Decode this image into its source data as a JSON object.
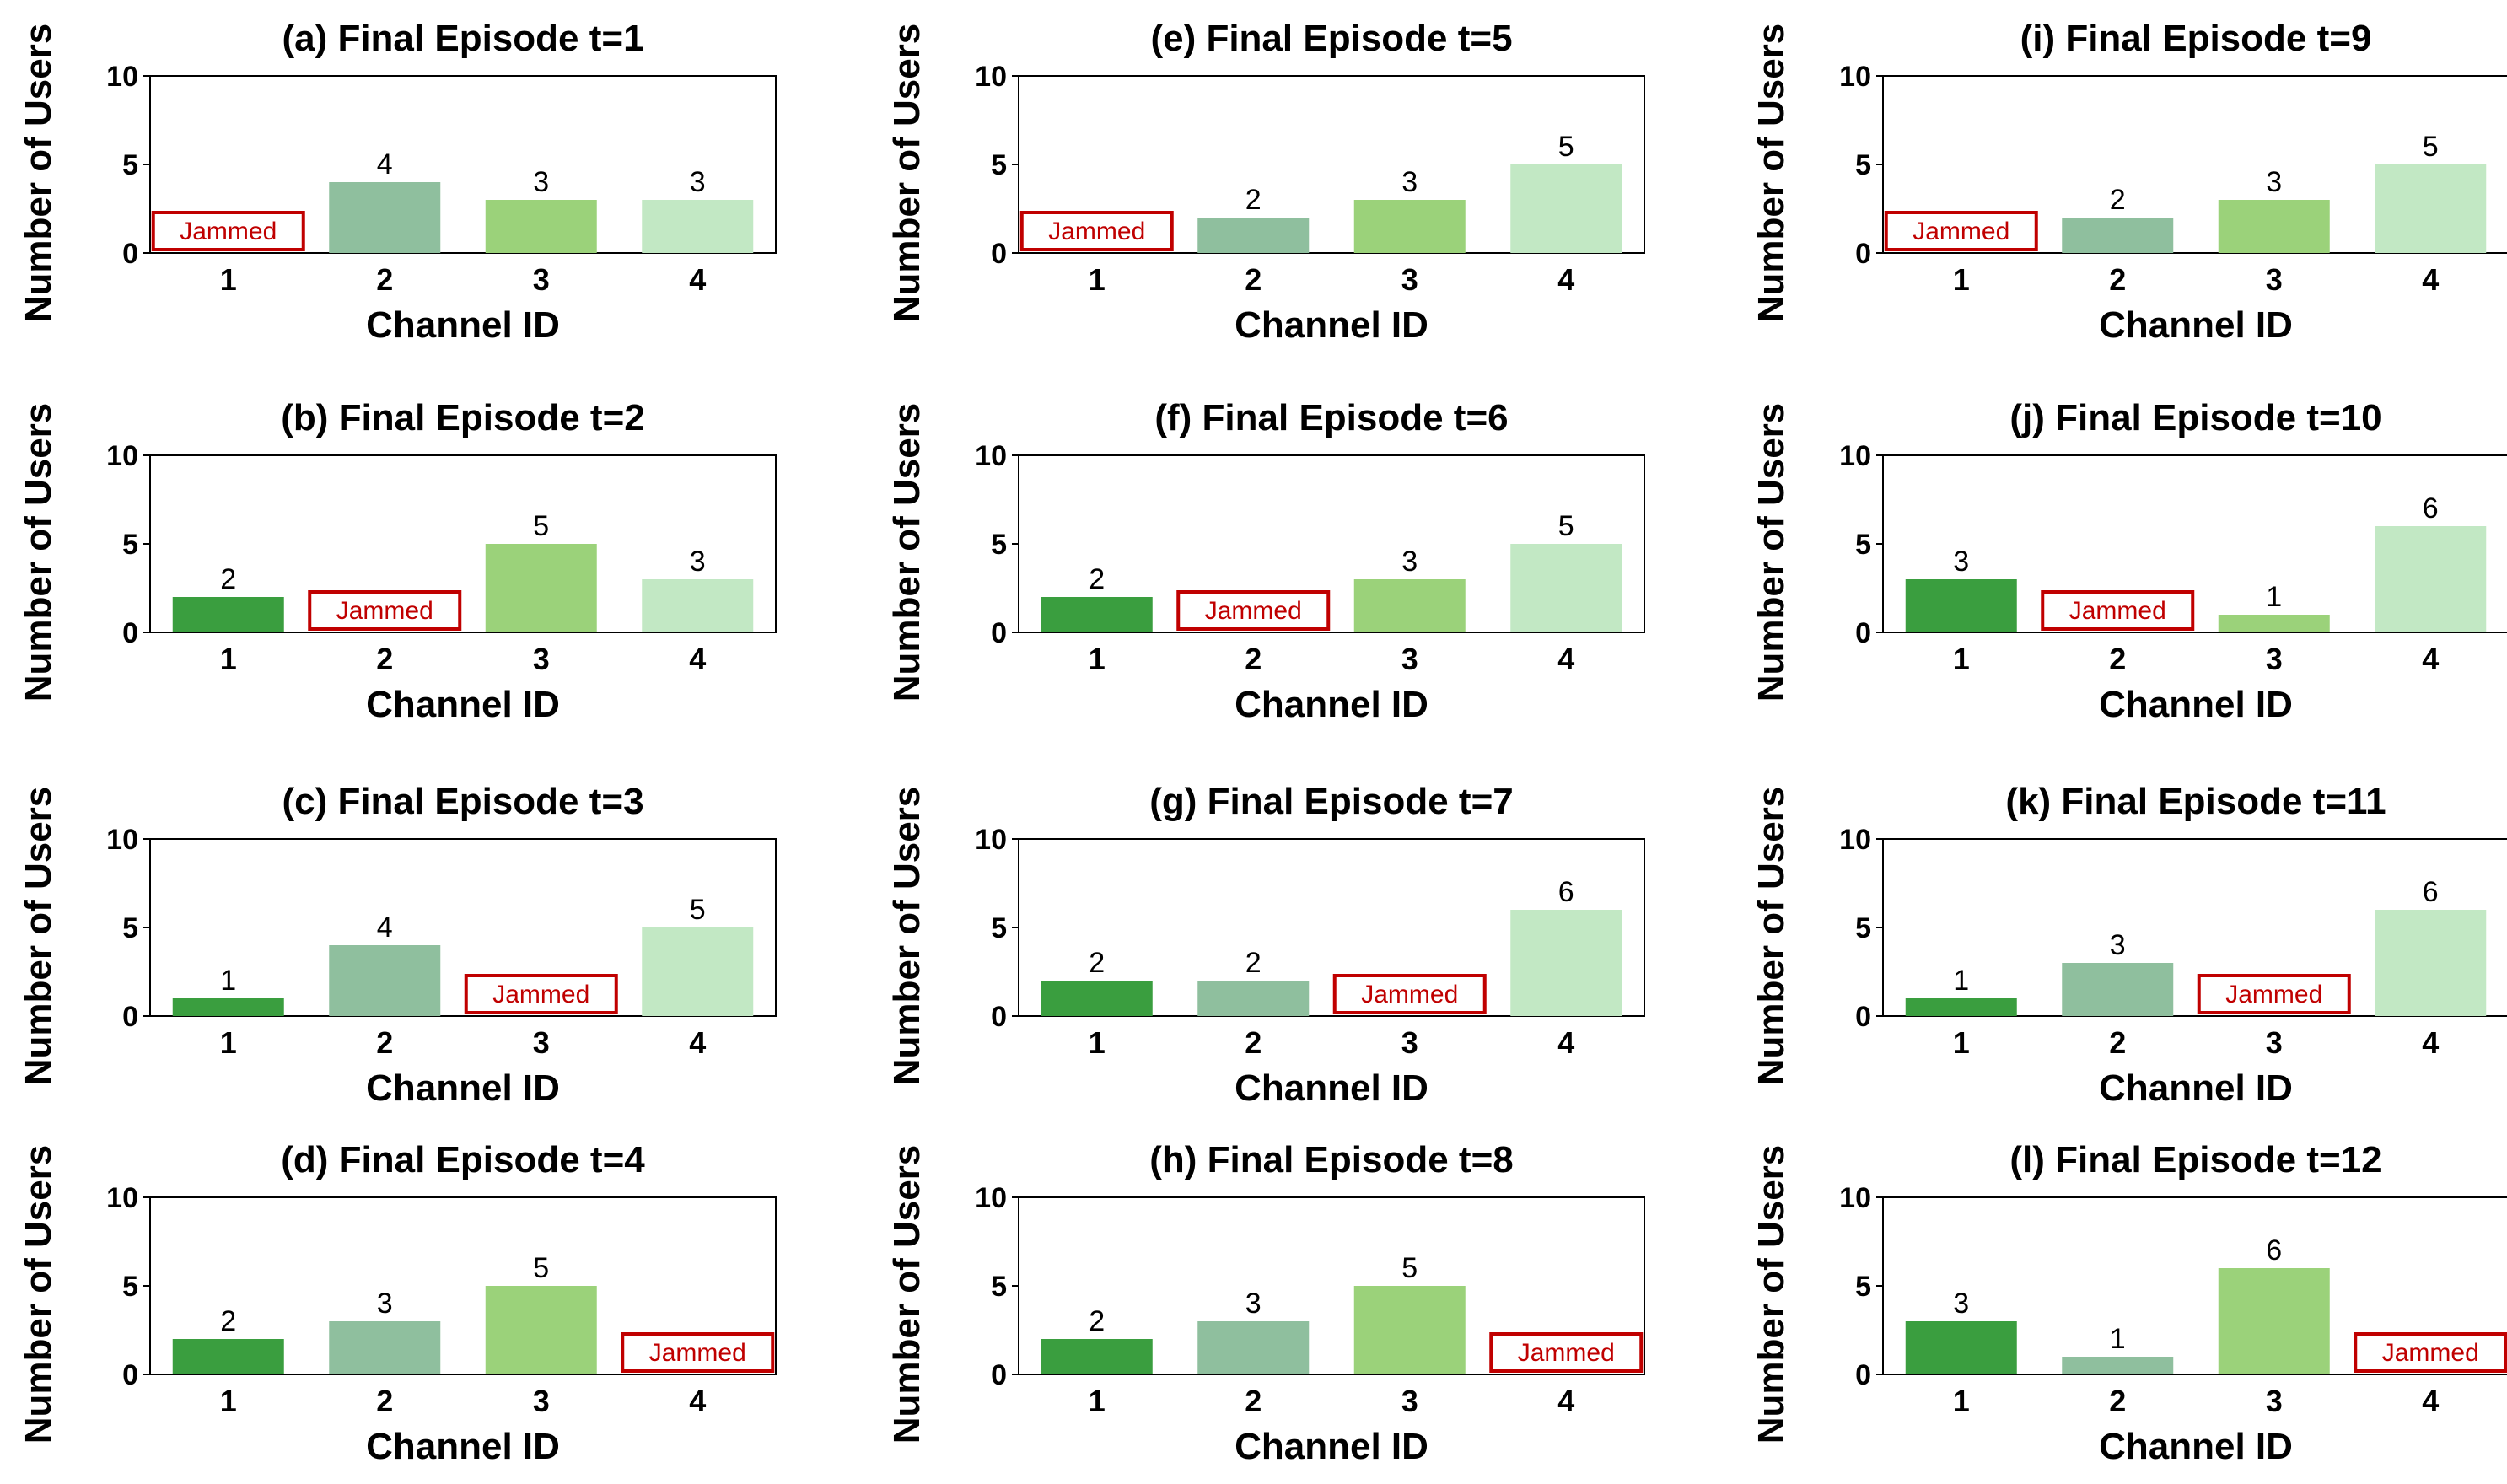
{
  "colors": {
    "jammed": "#c00000",
    "axis": "#000000",
    "channel_colors": [
      "#3a9e3f",
      "#8fbf9e",
      "#9bd27a",
      "#c2e8c4"
    ]
  },
  "chart_data": [
    {
      "type": "bar",
      "title": "(a) Final Episode t=1",
      "xlabel": "Channel ID",
      "ylabel": "Number of Users",
      "categories": [
        "1",
        "2",
        "3",
        "4"
      ],
      "values": [
        null,
        4,
        3,
        3
      ],
      "jammed_label": "Jammed",
      "jammed": "1",
      "yticks": [
        "0",
        "5",
        "10"
      ],
      "ylim": [
        0,
        10
      ]
    },
    {
      "type": "bar",
      "title": "(b) Final Episode t=2",
      "xlabel": "Channel ID",
      "ylabel": "Number of Users",
      "categories": [
        "1",
        "2",
        "3",
        "4"
      ],
      "values": [
        2,
        null,
        5,
        3
      ],
      "jammed_label": "Jammed",
      "jammed": "2",
      "yticks": [
        "0",
        "5",
        "10"
      ],
      "ylim": [
        0,
        10
      ]
    },
    {
      "type": "bar",
      "title": "(c) Final Episode t=3",
      "xlabel": "Channel ID",
      "ylabel": "Number of Users",
      "categories": [
        "1",
        "2",
        "3",
        "4"
      ],
      "values": [
        1,
        4,
        null,
        5
      ],
      "jammed_label": "Jammed",
      "jammed": "3",
      "yticks": [
        "0",
        "5",
        "10"
      ],
      "ylim": [
        0,
        10
      ]
    },
    {
      "type": "bar",
      "title": "(d) Final  Episode t=4",
      "xlabel": "Channel ID",
      "ylabel": "Number of Users",
      "categories": [
        "1",
        "2",
        "3",
        "4"
      ],
      "values": [
        2,
        3,
        5,
        null
      ],
      "jammed_label": "Jammed",
      "jammed": "4",
      "yticks": [
        "0",
        "5",
        "10"
      ],
      "ylim": [
        0,
        10
      ]
    },
    {
      "type": "bar",
      "title": "(e) Final Episode t=5",
      "xlabel": "Channel ID",
      "ylabel": "Number of Users",
      "categories": [
        "1",
        "2",
        "3",
        "4"
      ],
      "values": [
        null,
        2,
        3,
        5
      ],
      "jammed_label": "Jammed",
      "jammed": "1",
      "yticks": [
        "0",
        "5",
        "10"
      ],
      "ylim": [
        0,
        10
      ]
    },
    {
      "type": "bar",
      "title": "(f) Final Episode t=6",
      "xlabel": "Channel ID",
      "ylabel": "Number of Users",
      "categories": [
        "1",
        "2",
        "3",
        "4"
      ],
      "values": [
        2,
        null,
        3,
        5
      ],
      "jammed_label": "Jammed",
      "jammed": "2",
      "yticks": [
        "0",
        "5",
        "10"
      ],
      "ylim": [
        0,
        10
      ]
    },
    {
      "type": "bar",
      "title": "(g) Final Episode t=7",
      "xlabel": "Channel ID",
      "ylabel": "Number of Users",
      "categories": [
        "1",
        "2",
        "3",
        "4"
      ],
      "values": [
        2,
        2,
        null,
        6
      ],
      "jammed_label": "Jammed",
      "jammed": "3",
      "yticks": [
        "0",
        "5",
        "10"
      ],
      "ylim": [
        0,
        10
      ]
    },
    {
      "type": "bar",
      "title": "(h) Final Episode t=8",
      "xlabel": "Channel ID",
      "ylabel": "Number of Users",
      "categories": [
        "1",
        "2",
        "3",
        "4"
      ],
      "values": [
        2,
        3,
        5,
        null
      ],
      "jammed_label": "Jammed",
      "jammed": "4",
      "yticks": [
        "0",
        "5",
        "10"
      ],
      "ylim": [
        0,
        10
      ]
    },
    {
      "type": "bar",
      "title": "(i) Final Episode t=9",
      "xlabel": "Channel ID",
      "ylabel": "Number of Users",
      "categories": [
        "1",
        "2",
        "3",
        "4"
      ],
      "values": [
        null,
        2,
        3,
        5
      ],
      "jammed_label": "Jammed",
      "jammed": "1",
      "yticks": [
        "0",
        "5",
        "10"
      ],
      "ylim": [
        0,
        10
      ]
    },
    {
      "type": "bar",
      "title": "(j) Final Episode t=10",
      "xlabel": "Channel ID",
      "ylabel": "Number of Users",
      "categories": [
        "1",
        "2",
        "3",
        "4"
      ],
      "values": [
        3,
        null,
        1,
        6
      ],
      "jammed_label": "Jammed",
      "jammed": "2",
      "yticks": [
        "0",
        "5",
        "10"
      ],
      "ylim": [
        0,
        10
      ]
    },
    {
      "type": "bar",
      "title": "(k) Final Episode t=11",
      "xlabel": "Channel ID",
      "ylabel": "Number of Users",
      "categories": [
        "1",
        "2",
        "3",
        "4"
      ],
      "values": [
        1,
        3,
        null,
        6
      ],
      "jammed_label": "Jammed",
      "jammed": "3",
      "yticks": [
        "0",
        "5",
        "10"
      ],
      "ylim": [
        0,
        10
      ]
    },
    {
      "type": "bar",
      "title": "(l) Final Episode t=12",
      "xlabel": "Channel ID",
      "ylabel": "Number of Users",
      "categories": [
        "1",
        "2",
        "3",
        "4"
      ],
      "values": [
        3,
        1,
        6,
        null
      ],
      "jammed_label": "Jammed",
      "jammed": "4",
      "yticks": [
        "0",
        "5",
        "10"
      ],
      "ylim": [
        0,
        10
      ]
    }
  ]
}
